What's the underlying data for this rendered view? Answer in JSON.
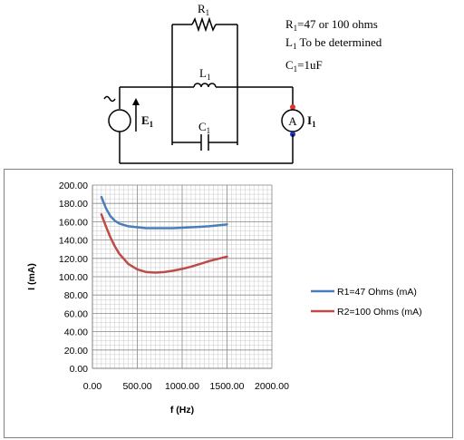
{
  "circuit": {
    "resistor_label": "R",
    "resistor_sub": "1",
    "inductor_label": "L",
    "inductor_sub": "1",
    "capacitor_label": "C",
    "capacitor_sub": "1",
    "source_label": "E",
    "source_sub": "1",
    "meter_symbol": "A",
    "meter_label": "I",
    "meter_sub": "1",
    "notes": [
      {
        "main": "R",
        "sub": "1",
        "rest": "=47 or 100 ohms"
      },
      {
        "main": "L",
        "sub": "1",
        "rest": " To be determined"
      },
      {
        "main": "C",
        "sub": "1",
        "rest": "=1uF"
      }
    ]
  },
  "chart_data": {
    "type": "line",
    "title": "",
    "xlabel": "f (Hz)",
    "ylabel": "I (mA)",
    "xlim": [
      0,
      2000
    ],
    "ylim": [
      0,
      200
    ],
    "xticks": [
      0,
      500,
      1000,
      1500,
      2000
    ],
    "yticks": [
      0,
      20,
      40,
      60,
      80,
      100,
      120,
      140,
      160,
      180,
      200
    ],
    "grid": true,
    "legend_position": "right",
    "series": [
      {
        "name": "R1=47 Ohms (mA)",
        "color": "#4a7ebb",
        "x": [
          100,
          150,
          200,
          250,
          300,
          400,
          500,
          600,
          700,
          800,
          900,
          1000,
          1100,
          1200,
          1300,
          1400,
          1500
        ],
        "values": [
          187,
          175,
          166,
          161,
          158,
          155,
          154,
          153,
          153,
          153,
          153,
          153.5,
          154,
          154.5,
          155,
          156,
          157
        ]
      },
      {
        "name": "R2=100 Ohms (mA)",
        "color": "#be4b48",
        "x": [
          100,
          150,
          200,
          250,
          300,
          400,
          500,
          600,
          700,
          800,
          900,
          1000,
          1100,
          1200,
          1300,
          1400,
          1500
        ],
        "values": [
          168,
          155,
          143,
          133,
          125,
          114,
          108,
          105,
          104.5,
          105,
          106.5,
          108.5,
          111,
          114,
          117,
          119.5,
          122
        ]
      }
    ]
  }
}
